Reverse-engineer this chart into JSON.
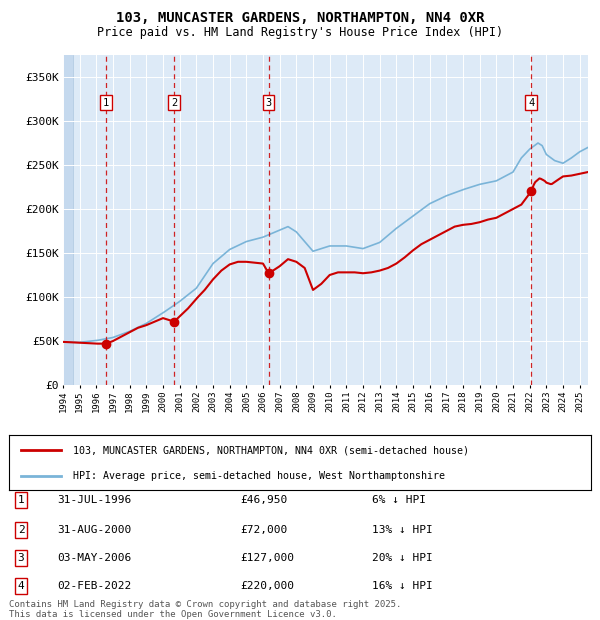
{
  "title": "103, MUNCASTER GARDENS, NORTHAMPTON, NN4 0XR",
  "subtitle": "Price paid vs. HM Land Registry's House Price Index (HPI)",
  "legend_line1": "103, MUNCASTER GARDENS, NORTHAMPTON, NN4 0XR (semi-detached house)",
  "legend_line2": "HPI: Average price, semi-detached house, West Northamptonshire",
  "footer": "Contains HM Land Registry data © Crown copyright and database right 2025.\nThis data is licensed under the Open Government Licence v3.0.",
  "transactions": [
    {
      "num": 1,
      "date": "31-JUL-1996",
      "price": 46950,
      "hpi_rel": "6% ↓ HPI",
      "x_year": 1996.58,
      "y_price": 46950
    },
    {
      "num": 2,
      "date": "31-AUG-2000",
      "price": 72000,
      "hpi_rel": "13% ↓ HPI",
      "x_year": 2000.67,
      "y_price": 72000
    },
    {
      "num": 3,
      "date": "03-MAY-2006",
      "price": 127000,
      "hpi_rel": "20% ↓ HPI",
      "x_year": 2006.33,
      "y_price": 127000
    },
    {
      "num": 4,
      "date": "02-FEB-2022",
      "price": 220000,
      "hpi_rel": "16% ↓ HPI",
      "x_year": 2022.09,
      "y_price": 220000
    }
  ],
  "hpi_color": "#7ab4d8",
  "price_color": "#cc0000",
  "dashed_color": "#cc0000",
  "background_color": "#ddeaf7",
  "ylim": [
    0,
    375000
  ],
  "xlim_start": 1994.0,
  "xlim_end": 2025.5,
  "yticks": [
    0,
    50000,
    100000,
    150000,
    200000,
    250000,
    300000,
    350000
  ],
  "ytick_labels": [
    "£0",
    "£50K",
    "£100K",
    "£150K",
    "£200K",
    "£250K",
    "£300K",
    "£350K"
  ]
}
